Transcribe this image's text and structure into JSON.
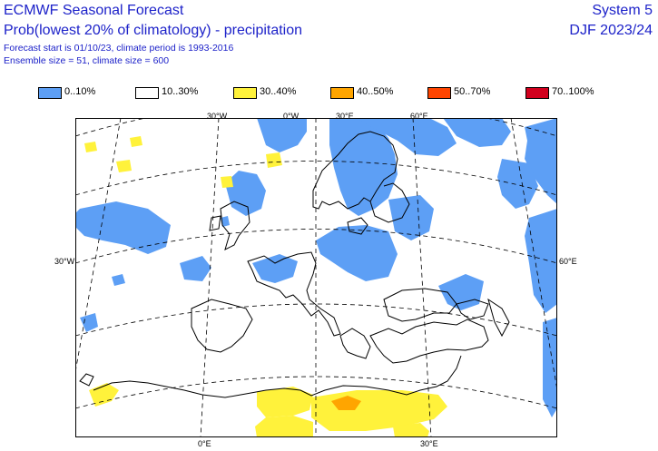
{
  "header": {
    "title_line1": "ECMWF Seasonal Forecast",
    "title_line2": "Prob(lowest 20% of climatology) - precipitation",
    "info_line1": "Forecast start is 01/10/23, climate period is 1993-2016",
    "info_line2": "Ensemble size = 51, climate size = 600",
    "system": "System 5",
    "period": "DJF 2023/24"
  },
  "legend": [
    {
      "label": "0..10%",
      "color": "#5d9ff5"
    },
    {
      "label": "10..30%",
      "color": "#ffffff"
    },
    {
      "label": "30..40%",
      "color": "#fff23b"
    },
    {
      "label": "40..50%",
      "color": "#ffa500"
    },
    {
      "label": "50..70%",
      "color": "#ff4500"
    },
    {
      "label": "70..100%",
      "color": "#d2001e"
    }
  ],
  "coords": {
    "top_30w": "30°W",
    "top_0w": "0°W",
    "top_30e": "30°E",
    "top_60e": "60°E",
    "left_30w": "30°W",
    "right_60e": "60°E",
    "bottom_0e": "0°E",
    "bottom_30e": "30°E"
  }
}
